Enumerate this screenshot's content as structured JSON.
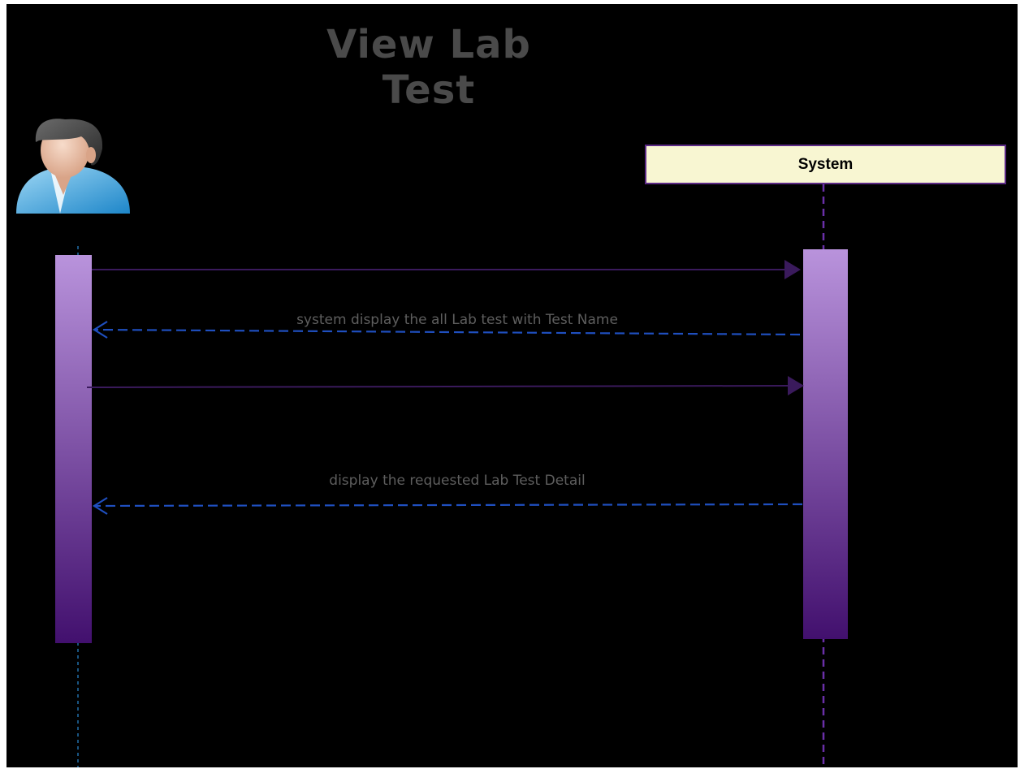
{
  "diagram": {
    "type": "sequence",
    "title_line1": "View Lab",
    "title_line2": "Test",
    "participants": [
      {
        "id": "user",
        "kind": "actor",
        "icon": "user-actor-icon",
        "label": ""
      },
      {
        "id": "system",
        "kind": "object",
        "label": "System"
      }
    ],
    "messages": [
      {
        "from": "user",
        "to": "system",
        "style": "solid",
        "label": ""
      },
      {
        "from": "system",
        "to": "user",
        "style": "dashed-return",
        "label": "system display the all Lab test with Test Name"
      },
      {
        "from": "user",
        "to": "system",
        "style": "solid",
        "label": ""
      },
      {
        "from": "system",
        "to": "user",
        "style": "dashed-return",
        "label": "display the requested Lab Test Detail"
      }
    ]
  },
  "colors": {
    "background": "#000000",
    "title": "#4a4a4a",
    "system_box_fill": "#f8f6d2",
    "system_box_border": "#5c2a86",
    "call_arrow": "#3a1a5c",
    "return_arrow": "#1f4fbf",
    "activation_top": "#b993dc",
    "activation_bottom": "#42106e",
    "user_lifeline": "#2a8bd6",
    "system_lifeline": "#6a2fa8",
    "label_text": "#5e5e5e"
  }
}
